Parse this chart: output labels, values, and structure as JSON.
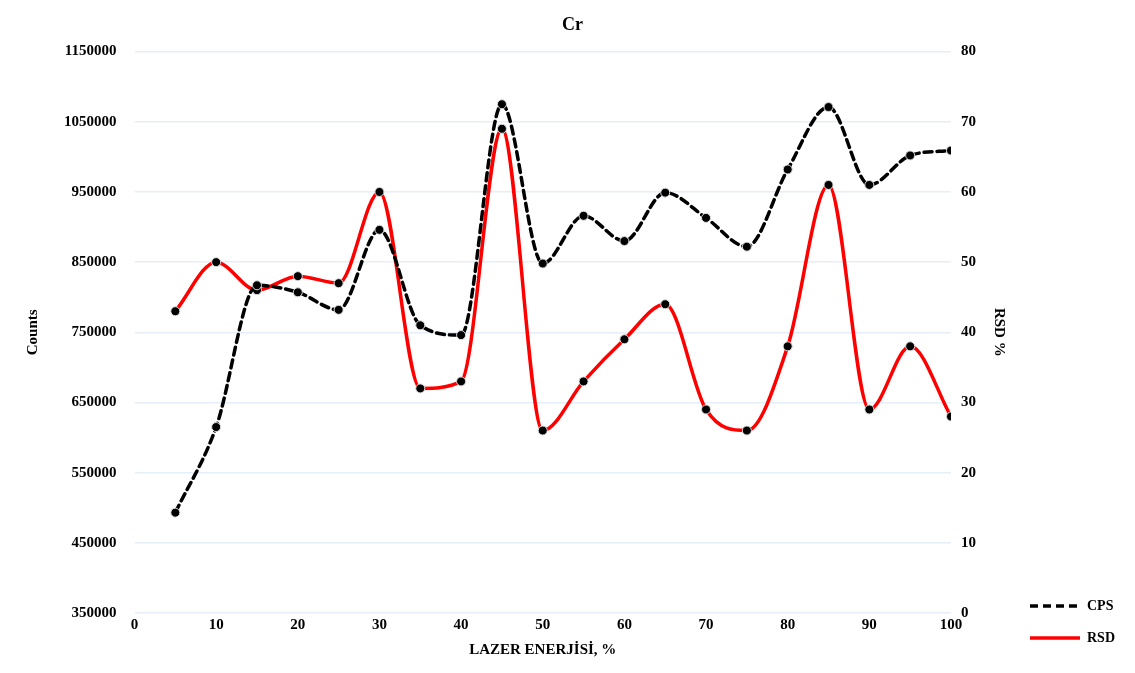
{
  "chart_data": {
    "type": "line",
    "title": "Cr",
    "xlabel": "LAZER ENERJİSİ, %",
    "ylabel": "Counts",
    "y2label": "RSD %",
    "x": [
      5,
      10,
      15,
      20,
      25,
      30,
      35,
      40,
      45,
      50,
      55,
      60,
      65,
      70,
      75,
      80,
      85,
      90,
      95,
      100
    ],
    "series": [
      {
        "name": "CPS",
        "color": "#000000",
        "line_style": "dashed",
        "values": [
          493000,
          615000,
          817000,
          807000,
          782000,
          896000,
          760000,
          746000,
          1075000,
          848000,
          916000,
          880000,
          949000,
          913000,
          872000,
          982000,
          1071000,
          960000,
          1002000,
          1009000
        ]
      },
      {
        "name": "RSD",
        "color": "#ff0000",
        "line_style": "solid",
        "axis": "y2",
        "values": [
          43,
          50,
          46,
          48,
          47,
          60,
          32,
          33,
          69,
          26,
          33,
          39,
          44,
          29,
          26,
          38,
          61,
          29,
          38,
          28
        ]
      }
    ],
    "xlim": [
      0,
      100
    ],
    "xticks": [
      0,
      10,
      20,
      30,
      40,
      50,
      60,
      70,
      80,
      90,
      100
    ],
    "ylim": [
      350000,
      1150000
    ],
    "yticks": [
      350000,
      450000,
      550000,
      650000,
      750000,
      850000,
      950000,
      1050000,
      1150000
    ],
    "y2lim": [
      0,
      80
    ],
    "y2ticks": [
      0,
      10,
      20,
      30,
      40,
      50,
      60,
      70,
      80
    ],
    "grid": "y",
    "legend": "bottom right",
    "marker": "circle"
  }
}
